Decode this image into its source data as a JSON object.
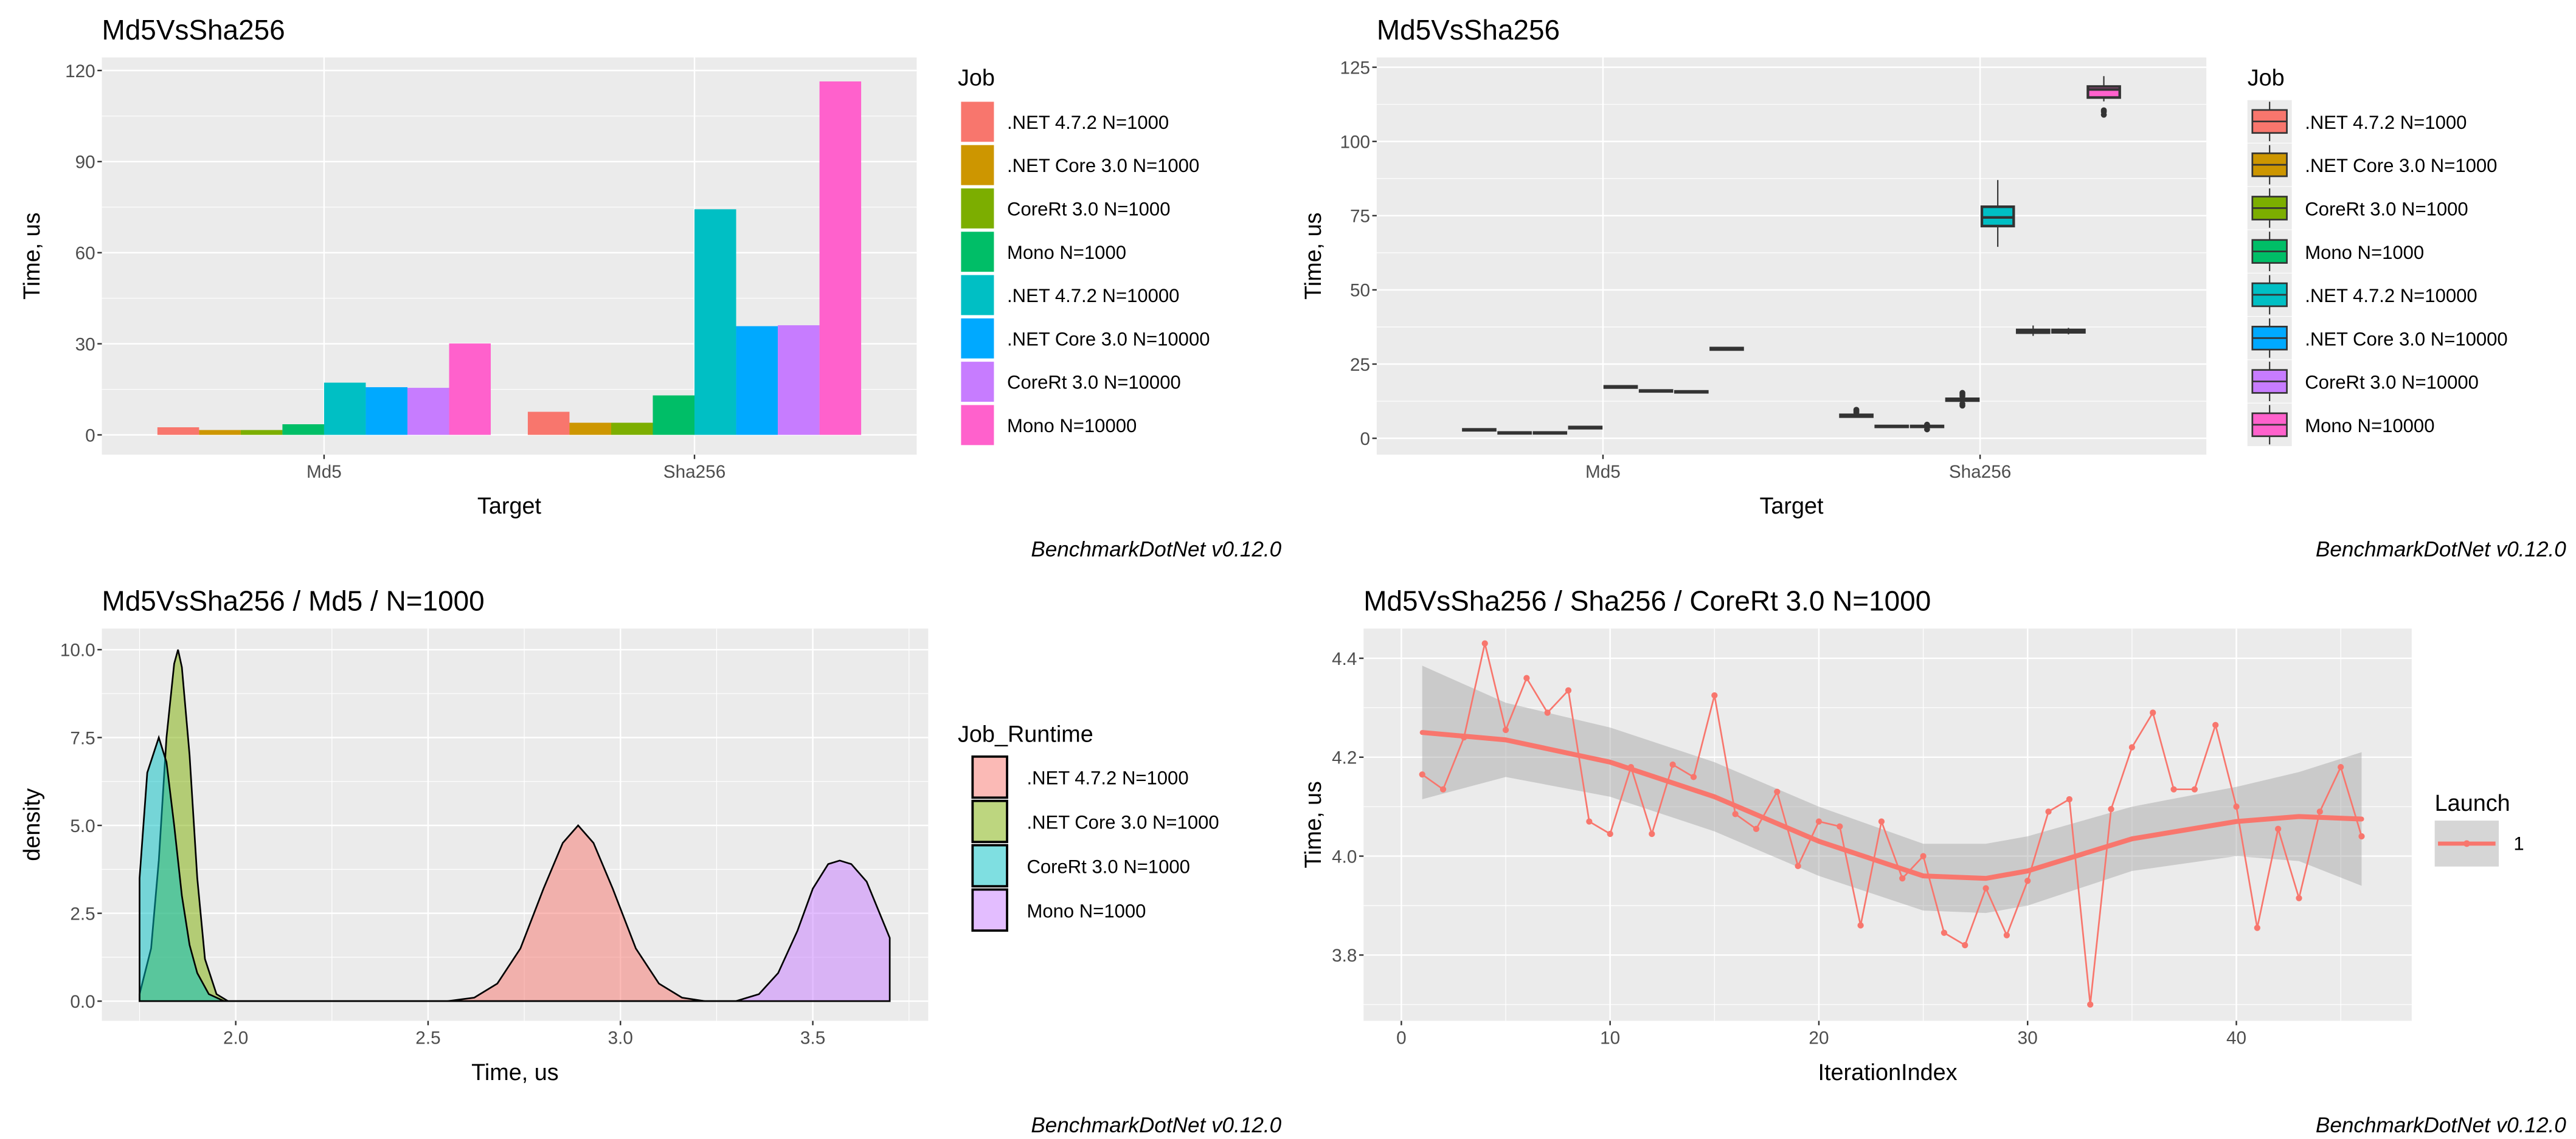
{
  "chart_data": [
    {
      "type": "bar",
      "title": "Md5VsSha256",
      "xlabel": "Target",
      "ylabel": "Time, us",
      "caption": "BenchmarkDotNet v0.12.0",
      "categories": [
        "Md5",
        "Sha256"
      ],
      "ylim": [
        0,
        120
      ],
      "yticks": [
        "0",
        "30",
        "60",
        "90",
        "120"
      ],
      "grid": true,
      "legend": {
        "title": "Job",
        "position": "right"
      },
      "series": [
        {
          "name": ".NET 4.7.2 N=1000",
          "color": "#F8766D",
          "values": [
            2.5,
            7.6
          ]
        },
        {
          "name": ".NET Core 3.0 N=1000",
          "color": "#CD9600",
          "values": [
            1.6,
            4.0
          ]
        },
        {
          "name": "CoreRt 3.0 N=1000",
          "color": "#7CAE00",
          "values": [
            1.6,
            4.0
          ]
        },
        {
          "name": "Mono N=1000",
          "color": "#00BE67",
          "values": [
            3.5,
            13.0
          ]
        },
        {
          "name": ".NET 4.7.2 N=10000",
          "color": "#00BFC4",
          "values": [
            17.2,
            74.3
          ]
        },
        {
          "name": ".NET Core 3.0 N=10000",
          "color": "#00A9FF",
          "values": [
            15.7,
            35.8
          ]
        },
        {
          "name": "CoreRt 3.0 N=10000",
          "color": "#C77CFF",
          "values": [
            15.5,
            36.1
          ]
        },
        {
          "name": "Mono N=10000",
          "color": "#FF61CC",
          "values": [
            30.1,
            116.4
          ]
        }
      ]
    },
    {
      "type": "box",
      "title": "Md5VsSha256",
      "xlabel": "Target",
      "ylabel": "Time, us",
      "caption": "BenchmarkDotNet v0.12.0",
      "categories": [
        "Md5",
        "Sha256"
      ],
      "ylim": [
        0,
        125
      ],
      "yticks": [
        "0",
        "25",
        "50",
        "75",
        "100",
        "125"
      ],
      "grid": true,
      "legend": {
        "title": "Job",
        "position": "right"
      },
      "series": [
        {
          "name": ".NET 4.7.2 N=1000",
          "color": "#F8766D",
          "boxes": [
            {
              "lower": 2.5,
              "q1": 2.7,
              "median": 2.85,
              "q3": 3.0,
              "upper": 3.2,
              "outliers": []
            },
            {
              "lower": 7.0,
              "q1": 7.3,
              "median": 7.6,
              "q3": 7.9,
              "upper": 8.2,
              "outliers": [
                8.7,
                9.2,
                9.6
              ]
            }
          ]
        },
        {
          "name": ".NET Core 3.0 N=1000",
          "color": "#CD9600",
          "boxes": [
            {
              "lower": 1.5,
              "q1": 1.7,
              "median": 1.8,
              "q3": 1.95,
              "upper": 2.1,
              "outliers": []
            },
            {
              "lower": 3.7,
              "q1": 3.85,
              "median": 4.0,
              "q3": 4.15,
              "upper": 4.3,
              "outliers": []
            }
          ]
        },
        {
          "name": "CoreRt 3.0 N=1000",
          "color": "#7CAE00",
          "boxes": [
            {
              "lower": 1.5,
              "q1": 1.7,
              "median": 1.8,
              "q3": 1.95,
              "upper": 2.1,
              "outliers": []
            },
            {
              "lower": 3.7,
              "q1": 3.85,
              "median": 4.0,
              "q3": 4.15,
              "upper": 4.4,
              "outliers": [
                3.0,
                4.6
              ]
            }
          ]
        },
        {
          "name": "Mono N=1000",
          "color": "#00BE67",
          "boxes": [
            {
              "lower": 3.2,
              "q1": 3.4,
              "median": 3.6,
              "q3": 3.8,
              "upper": 4.0,
              "outliers": []
            },
            {
              "lower": 12.3,
              "q1": 12.7,
              "median": 13.0,
              "q3": 13.3,
              "upper": 13.7,
              "outliers": [
                11.0,
                11.6,
                14.2,
                14.8,
                15.3
              ]
            }
          ]
        },
        {
          "name": ".NET 4.7.2 N=10000",
          "color": "#00BFC4",
          "boxes": [
            {
              "lower": 16.8,
              "q1": 17.1,
              "median": 17.3,
              "q3": 17.5,
              "upper": 17.8,
              "outliers": []
            },
            {
              "lower": 64.5,
              "q1": 71.5,
              "median": 74.4,
              "q3": 78.0,
              "upper": 87.0,
              "outliers": []
            }
          ]
        },
        {
          "name": ".NET Core 3.0 N=10000",
          "color": "#00A9FF",
          "boxes": [
            {
              "lower": 15.6,
              "q1": 15.8,
              "median": 15.9,
              "q3": 16.1,
              "upper": 16.3,
              "outliers": []
            },
            {
              "lower": 34.5,
              "q1": 35.6,
              "median": 36.0,
              "q3": 36.5,
              "upper": 38.0,
              "outliers": []
            }
          ]
        },
        {
          "name": "CoreRt 3.0 N=10000",
          "color": "#C77CFF",
          "boxes": [
            {
              "lower": 15.3,
              "q1": 15.5,
              "median": 15.6,
              "q3": 15.8,
              "upper": 16.0,
              "outliers": []
            },
            {
              "lower": 35.0,
              "q1": 35.7,
              "median": 36.1,
              "q3": 36.5,
              "upper": 37.2,
              "outliers": []
            }
          ]
        },
        {
          "name": "Mono N=10000",
          "color": "#FF61CC",
          "boxes": [
            {
              "lower": 29.6,
              "q1": 29.9,
              "median": 30.1,
              "q3": 30.4,
              "upper": 30.7,
              "outliers": []
            },
            {
              "lower": 113.5,
              "q1": 114.8,
              "median": 117.5,
              "q3": 118.5,
              "upper": 122.0,
              "outliers": [
                109.0,
                110.0,
                110.5
              ]
            }
          ]
        }
      ]
    },
    {
      "type": "area",
      "title": "Md5VsSha256 / Md5 / N=1000",
      "xlabel": "Time, us",
      "ylabel": "density",
      "caption": "BenchmarkDotNet v0.12.0",
      "xlim": [
        1.75,
        3.7
      ],
      "ylim": [
        0,
        10
      ],
      "xticks": [
        "2.0",
        "2.5",
        "3.0",
        "3.5"
      ],
      "yticks": [
        "0.0",
        "2.5",
        "5.0",
        "7.5",
        "10.0"
      ],
      "grid": true,
      "legend": {
        "title": "Job_Runtime",
        "position": "right"
      },
      "series": [
        {
          "name": ".NET 4.7.2 N=1000",
          "color": "#F8766D",
          "x": [
            1.75,
            2.55,
            2.62,
            2.68,
            2.74,
            2.8,
            2.85,
            2.89,
            2.93,
            2.98,
            3.04,
            3.1,
            3.16,
            3.22,
            3.7
          ],
          "y": [
            0,
            0,
            0.1,
            0.5,
            1.5,
            3.2,
            4.5,
            5.0,
            4.5,
            3.2,
            1.5,
            0.5,
            0.1,
            0,
            0
          ]
        },
        {
          "name": ".NET Core 3.0 N=1000",
          "color": "#7CAE00",
          "x": [
            1.75,
            1.78,
            1.8,
            1.82,
            1.84,
            1.85,
            1.86,
            1.88,
            1.9,
            1.92,
            1.95,
            1.98,
            3.7
          ],
          "y": [
            0.2,
            1.5,
            4.0,
            7.5,
            9.6,
            10.0,
            9.5,
            7.0,
            3.5,
            1.2,
            0.2,
            0,
            0
          ]
        },
        {
          "name": "CoreRt 3.0 N=1000",
          "color": "#00BFC4",
          "x": [
            1.75,
            1.77,
            1.8,
            1.82,
            1.84,
            1.86,
            1.88,
            1.9,
            1.93,
            1.97,
            3.7
          ],
          "y": [
            3.5,
            6.5,
            7.5,
            6.8,
            5.0,
            3.0,
            1.6,
            0.8,
            0.2,
            0,
            0
          ]
        },
        {
          "name": "Mono N=1000",
          "color": "#C77CFF",
          "x": [
            1.75,
            3.3,
            3.36,
            3.41,
            3.46,
            3.5,
            3.54,
            3.57,
            3.6,
            3.64,
            3.67,
            3.7
          ],
          "y": [
            0,
            0,
            0.2,
            0.8,
            2.0,
            3.2,
            3.9,
            4.0,
            3.9,
            3.4,
            2.6,
            1.8
          ]
        }
      ]
    },
    {
      "type": "line",
      "title": "Md5VsSha256 / Sha256 / CoreRt 3.0 N=1000",
      "xlabel": "IterationIndex",
      "ylabel": "Time, us",
      "caption": "BenchmarkDotNet v0.12.0",
      "xlim": [
        1,
        46
      ],
      "ylim": [
        3.7,
        4.43
      ],
      "xticks": [
        "0",
        "10",
        "20",
        "30",
        "40"
      ],
      "yticks": [
        "3.8",
        "4.0",
        "4.2",
        "4.4"
      ],
      "grid": true,
      "legend": {
        "title": "Launch",
        "position": "right"
      },
      "series": [
        {
          "name": "1",
          "color": "#F8766D",
          "x": [
            1,
            2,
            3,
            4,
            5,
            6,
            7,
            8,
            9,
            10,
            11,
            12,
            13,
            14,
            15,
            16,
            17,
            18,
            19,
            20,
            21,
            22,
            23,
            24,
            25,
            26,
            27,
            28,
            29,
            30,
            31,
            32,
            33,
            34,
            35,
            36,
            37,
            38,
            39,
            40,
            41,
            42,
            43,
            44,
            45,
            46
          ],
          "y": [
            4.165,
            4.135,
            4.24,
            4.43,
            4.255,
            4.36,
            4.29,
            4.335,
            4.07,
            4.045,
            4.18,
            4.045,
            4.185,
            4.16,
            4.325,
            4.085,
            4.055,
            4.13,
            3.98,
            4.07,
            4.06,
            3.86,
            4.07,
            3.955,
            4.0,
            3.845,
            3.82,
            3.935,
            3.84,
            3.95,
            4.09,
            4.115,
            3.7,
            4.095,
            4.22,
            4.29,
            4.135,
            4.135,
            4.265,
            4.1,
            3.855,
            4.055,
            3.915,
            4.09,
            4.18,
            4.04
          ]
        }
      ],
      "smooth": {
        "x": [
          1,
          5,
          10,
          15,
          20,
          25,
          28,
          30,
          35,
          40,
          43,
          46
        ],
        "fit": [
          4.25,
          4.235,
          4.19,
          4.12,
          4.03,
          3.96,
          3.955,
          3.97,
          4.035,
          4.07,
          4.08,
          4.075
        ],
        "lower": [
          4.115,
          4.16,
          4.12,
          4.05,
          3.96,
          3.89,
          3.885,
          3.9,
          3.97,
          4.0,
          3.99,
          3.94
        ],
        "upper": [
          4.385,
          4.31,
          4.26,
          4.19,
          4.1,
          4.025,
          4.025,
          4.04,
          4.1,
          4.14,
          4.17,
          4.21
        ]
      }
    }
  ]
}
